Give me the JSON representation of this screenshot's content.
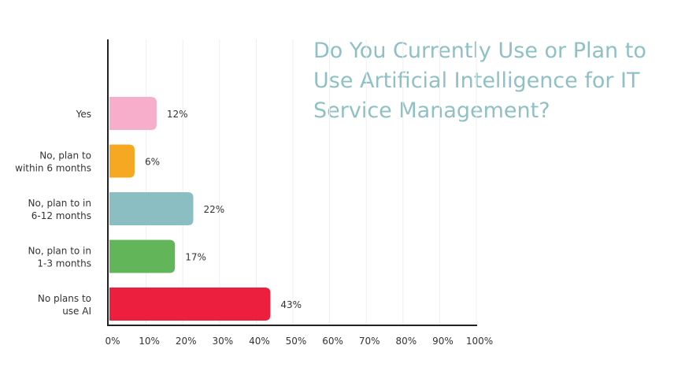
{
  "chart_data": {
    "type": "bar",
    "orientation": "horizontal",
    "title": "Do You Currently Use or Plan to Use Artificial Intelligence for IT Service Management?",
    "categories": [
      "Yes",
      "No, plan to\nwithin 6 months",
      "No, plan to in\n6-12 months",
      "No, plan to in\n1-3 months",
      "No plans to\nuse AI"
    ],
    "values": [
      12,
      6,
      22,
      17,
      43
    ],
    "value_labels": [
      "12%",
      "6%",
      "22%",
      "17%",
      "43%"
    ],
    "colors": [
      "#f6aecb",
      "#f7a823",
      "#8bbec2",
      "#63b55a",
      "#ec1f3f"
    ],
    "xlim": [
      0,
      100
    ],
    "xticks": [
      "0%",
      "10%",
      "20%",
      "30%",
      "40%",
      "50%",
      "60%",
      "70%",
      "80%",
      "90%",
      "100%"
    ],
    "grid": true,
    "title_color": "#8fc1c4"
  }
}
